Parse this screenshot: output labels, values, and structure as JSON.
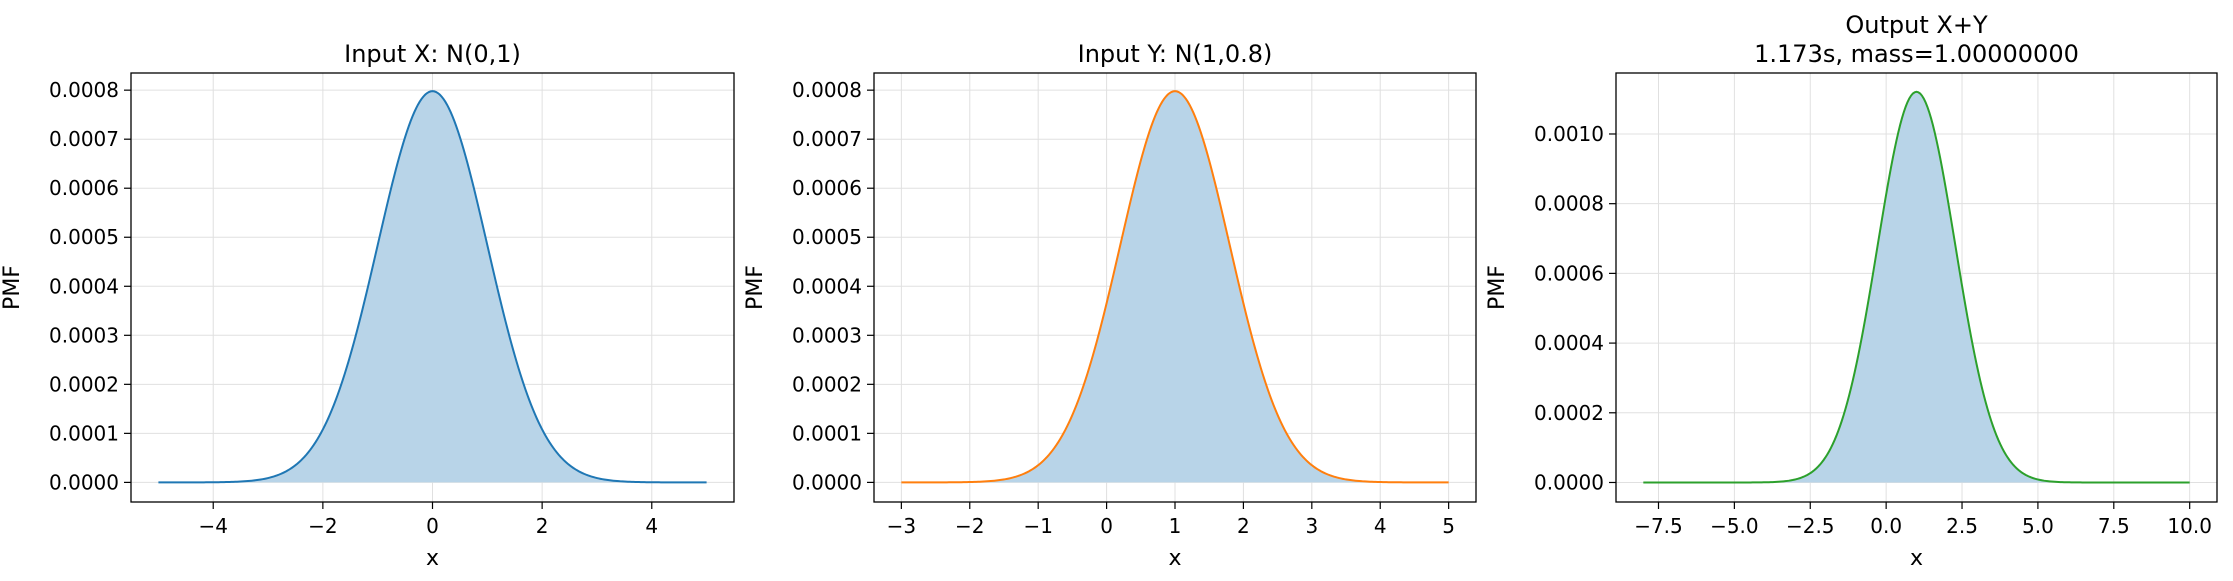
{
  "chart_data": [
    {
      "type": "area",
      "title": "Input X: N(0,1)",
      "xlabel": "x",
      "ylabel": "PMF",
      "mean": 0,
      "std": 1,
      "x_support": [
        -5,
        5
      ],
      "xlim": [
        -5.5,
        5.5
      ],
      "ylim": [
        -4e-05,
        0.000835
      ],
      "peak": 0.0007979,
      "xticks": [
        -4,
        -2,
        0,
        2,
        4
      ],
      "yticks": [
        0,
        0.0001,
        0.0002,
        0.0003,
        0.0004,
        0.0005,
        0.0006,
        0.0007,
        0.0008
      ],
      "xtick_labels": [
        "−4",
        "−2",
        "0",
        "2",
        "4"
      ],
      "ytick_labels": [
        "0.0000",
        "0.0001",
        "0.0002",
        "0.0003",
        "0.0004",
        "0.0005",
        "0.0006",
        "0.0007",
        "0.0008"
      ],
      "line_color": "#1f77b4",
      "fill_color": "#b8d4e8",
      "grid": true
    },
    {
      "type": "area",
      "title": "Input Y: N(1,0.8)",
      "xlabel": "x",
      "ylabel": "PMF",
      "mean": 1,
      "std": 0.8,
      "x_support": [
        -3,
        5
      ],
      "xlim": [
        -3.4,
        5.4
      ],
      "ylim": [
        -4e-05,
        0.000835
      ],
      "peak": 0.0007979,
      "xticks": [
        -3,
        -2,
        -1,
        0,
        1,
        2,
        3,
        4,
        5
      ],
      "yticks": [
        0,
        0.0001,
        0.0002,
        0.0003,
        0.0004,
        0.0005,
        0.0006,
        0.0007,
        0.0008
      ],
      "xtick_labels": [
        "−3",
        "−2",
        "−1",
        "0",
        "1",
        "2",
        "3",
        "4",
        "5"
      ],
      "ytick_labels": [
        "0.0000",
        "0.0001",
        "0.0002",
        "0.0003",
        "0.0004",
        "0.0005",
        "0.0006",
        "0.0007",
        "0.0008"
      ],
      "line_color": "#ff7f0e",
      "fill_color": "#b8d4e8",
      "grid": true
    },
    {
      "type": "area",
      "title": "Output X+Y",
      "subtitle": "1.173s, mass=1.00000000",
      "xlabel": "x",
      "ylabel": "PMF",
      "mean": 1,
      "std": 1.2806,
      "x_support": [
        -8,
        10
      ],
      "xlim": [
        -8.9,
        10.9
      ],
      "ylim": [
        -5.6e-05,
        0.001175
      ],
      "peak": 0.001121,
      "xticks": [
        -7.5,
        -5,
        -2.5,
        0,
        2.5,
        5,
        7.5,
        10
      ],
      "yticks": [
        0,
        0.0002,
        0.0004,
        0.0006,
        0.0008,
        0.001
      ],
      "xtick_labels": [
        "−7.5",
        "−5.0",
        "−2.5",
        "0.0",
        "2.5",
        "5.0",
        "7.5",
        "10.0"
      ],
      "ytick_labels": [
        "0.0000",
        "0.0002",
        "0.0004",
        "0.0006",
        "0.0008",
        "0.0010"
      ],
      "line_color": "#2ca02c",
      "fill_color": "#b8d4e8",
      "grid": true
    }
  ]
}
